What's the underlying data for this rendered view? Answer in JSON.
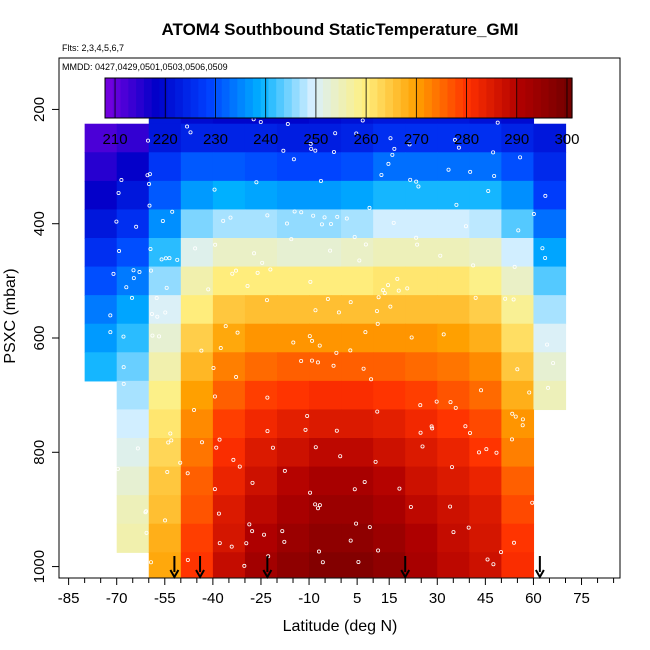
{
  "chart_data": {
    "type": "heatmap",
    "title": "ATOM4 Southbound StaticTemperature_GMI",
    "flights_text": "Flts: 2,3,4,5,6,7",
    "dates_text": "MMDD: 0427,0429,0501,0503,0506,0509",
    "xlabel": "Latitude (deg N)",
    "ylabel": "PSXC (mbar)",
    "xlim": [
      -88,
      87
    ],
    "ylim": [
      1020,
      110
    ],
    "x_ticks": [
      -85,
      -70,
      -55,
      -40,
      -25,
      -10,
      5,
      15,
      30,
      45,
      60,
      75
    ],
    "x_tick_labels": [
      "-85",
      "-70",
      "-55",
      "-40",
      "-25",
      "-10",
      "5",
      "15",
      "30",
      "45",
      "60",
      "75"
    ],
    "y_ticks": [
      200,
      400,
      600,
      800,
      1000
    ],
    "y_tick_labels": [
      "200",
      "400",
      "600",
      "800",
      "1000"
    ],
    "colorbar": {
      "min": 208,
      "max": 301,
      "ticks": [
        210,
        220,
        230,
        240,
        250,
        260,
        270,
        280,
        290,
        300
      ],
      "tick_labels": [
        "210",
        "220",
        "230",
        "240",
        "250",
        "260",
        "270",
        "280",
        "290",
        "300"
      ],
      "colors": [
        "#7a00e0",
        "#0000c8",
        "#0040ff",
        "#00b0ff",
        "#d8f0ff",
        "#fff080",
        "#ffa000",
        "#ff3000",
        "#b00000",
        "#700000"
      ]
    },
    "markers_latitude": [
      -52,
      -44,
      -23,
      20,
      62
    ],
    "pressure_levels": [
      200,
      250,
      300,
      350,
      400,
      450,
      500,
      550,
      600,
      650,
      700,
      750,
      800,
      850,
      900,
      950,
      1000
    ],
    "latitude_bands": [
      -75,
      -65,
      -55,
      -45,
      -35,
      -25,
      -15,
      -5,
      5,
      15,
      25,
      35,
      45,
      55,
      65
    ],
    "temperature_grid": [
      [
        null,
        null,
        222,
        220,
        219,
        219,
        219,
        220,
        221,
        222,
        222,
        222,
        221,
        220,
        null
      ],
      [
        212,
        214,
        222,
        224,
        224,
        224,
        223,
        223,
        224,
        226,
        226,
        226,
        226,
        224,
        222
      ],
      [
        215,
        218,
        227,
        231,
        231,
        230,
        229,
        229,
        230,
        233,
        233,
        233,
        233,
        230,
        225
      ],
      [
        218,
        222,
        231,
        237,
        239,
        238,
        237,
        237,
        238,
        240,
        240,
        240,
        240,
        236,
        228
      ],
      [
        222,
        226,
        236,
        245,
        247,
        247,
        246,
        246,
        247,
        249,
        249,
        249,
        248,
        243,
        233
      ],
      [
        226,
        230,
        241,
        251,
        254,
        254,
        253,
        253,
        254,
        255,
        255,
        255,
        254,
        249,
        238
      ],
      [
        230,
        234,
        246,
        256,
        260,
        260,
        260,
        260,
        260,
        261,
        261,
        261,
        259,
        254,
        243
      ],
      [
        234,
        238,
        250,
        260,
        265,
        266,
        266,
        266,
        266,
        266,
        266,
        266,
        264,
        258,
        247
      ],
      [
        237,
        241,
        253,
        264,
        269,
        271,
        271,
        271,
        271,
        271,
        271,
        270,
        268,
        262,
        250
      ],
      [
        240,
        244,
        256,
        267,
        273,
        275,
        276,
        276,
        276,
        276,
        275,
        274,
        272,
        265,
        253
      ],
      [
        null,
        247,
        259,
        270,
        276,
        279,
        280,
        281,
        281,
        280,
        279,
        277,
        275,
        268,
        255
      ],
      [
        null,
        249,
        261,
        272,
        279,
        282,
        284,
        285,
        285,
        284,
        282,
        280,
        278,
        271,
        null
      ],
      [
        null,
        251,
        263,
        274,
        281,
        285,
        287,
        289,
        289,
        287,
        285,
        283,
        280,
        273,
        null
      ],
      [
        null,
        253,
        265,
        276,
        283,
        287,
        290,
        292,
        292,
        290,
        287,
        285,
        283,
        276,
        null
      ],
      [
        null,
        255,
        266,
        277,
        285,
        289,
        292,
        294,
        294,
        292,
        289,
        287,
        285,
        278,
        null
      ],
      [
        null,
        256,
        268,
        279,
        286,
        291,
        294,
        296,
        296,
        294,
        291,
        288,
        286,
        280,
        null
      ],
      [
        null,
        null,
        269,
        280,
        288,
        293,
        296,
        298,
        298,
        296,
        292,
        289,
        287,
        281,
        null
      ]
    ]
  }
}
